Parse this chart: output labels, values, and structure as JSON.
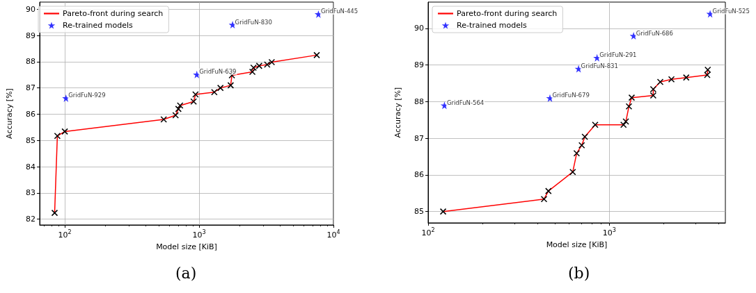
{
  "chart_data": [
    {
      "type": "line",
      "xlabel": "Model size [KiB]",
      "ylabel": "Accuracy [%]",
      "log": "x",
      "grid": true,
      "legend": "top left",
      "xlim": [
        65,
        10000
      ],
      "xticks": [
        {
          "value": 100,
          "label": "10$^{2}$"
        },
        {
          "value": 1000,
          "label": "10$^{3}$"
        },
        {
          "value": 10000,
          "label": "10$^{4}$"
        }
      ],
      "ylim": [
        81.78,
        90.27
      ],
      "yticks": [
        82,
        83,
        84,
        85,
        86,
        87,
        88,
        89,
        90
      ],
      "annotations": [
        "(a)"
      ],
      "series": [
        {
          "name": "Pareto-front during search",
          "color": "#ff0000",
          "marker": "cross",
          "x": [
            84,
            88,
            100,
            545,
            668,
            701,
            722,
            910,
            940,
            1297,
            1441,
            1718,
            1753,
            2492,
            2541,
            2800,
            3211,
            3473,
            7508
          ],
          "values": [
            82.24,
            85.17,
            85.34,
            85.8,
            85.96,
            86.2,
            86.33,
            86.48,
            86.75,
            86.84,
            87.0,
            87.1,
            87.48,
            87.61,
            87.77,
            87.84,
            87.89,
            87.98,
            88.25
          ]
        },
        {
          "name": "Re-trained models",
          "type": "scatter",
          "color": "#0000ff",
          "marker": "star",
          "x": [
            102,
            961,
            1774,
            7726
          ],
          "values": [
            86.61,
            87.51,
            89.41,
            89.81
          ],
          "value_labels": [
            "GridFuN-929",
            "GridFuN-639",
            "GridFuN-830",
            "GridFuN-445"
          ]
        }
      ]
    },
    {
      "type": "line",
      "xlabel": "Model size [KiB]",
      "ylabel": "Accuracy [%]",
      "log": "x",
      "grid": true,
      "legend": "top left",
      "xlim": [
        100,
        4365
      ],
      "xticks": [
        {
          "value": 100,
          "label": "10$^{2}$"
        },
        {
          "value": 1000,
          "label": "10$^{3}$"
        }
      ],
      "ylim": [
        84.69,
        90.72
      ],
      "yticks": [
        85,
        86,
        87,
        88,
        89,
        90
      ],
      "annotations": [
        "(b)"
      ],
      "series": [
        {
          "name": "Pareto-front during search",
          "color": "#ff0000",
          "marker": "cross",
          "x": [
            121,
            436,
            461,
            628,
            660,
            704,
            732,
            835,
            1197,
            1233,
            1282,
            1328,
            1746,
            1746,
            1909,
            2200,
            2655,
            3467,
            3490
          ],
          "values": [
            85.0,
            85.34,
            85.56,
            86.08,
            86.59,
            86.81,
            87.04,
            87.37,
            87.37,
            87.46,
            87.87,
            88.11,
            88.17,
            88.34,
            88.54,
            88.61,
            88.66,
            88.73,
            88.87
          ]
        },
        {
          "name": "Re-trained models",
          "type": "scatter",
          "color": "#0000ff",
          "marker": "star",
          "x": [
            123,
            470,
            676,
            855,
            1360,
            3597
          ],
          "values": [
            87.9,
            88.1,
            88.9,
            89.2,
            89.8,
            90.4
          ],
          "value_labels": [
            "GridFuN-564",
            "GridFuN-679",
            "GridFuN-831",
            "GridFuN-291",
            "GridFuN-686",
            "GridFuN-525"
          ]
        }
      ]
    }
  ]
}
